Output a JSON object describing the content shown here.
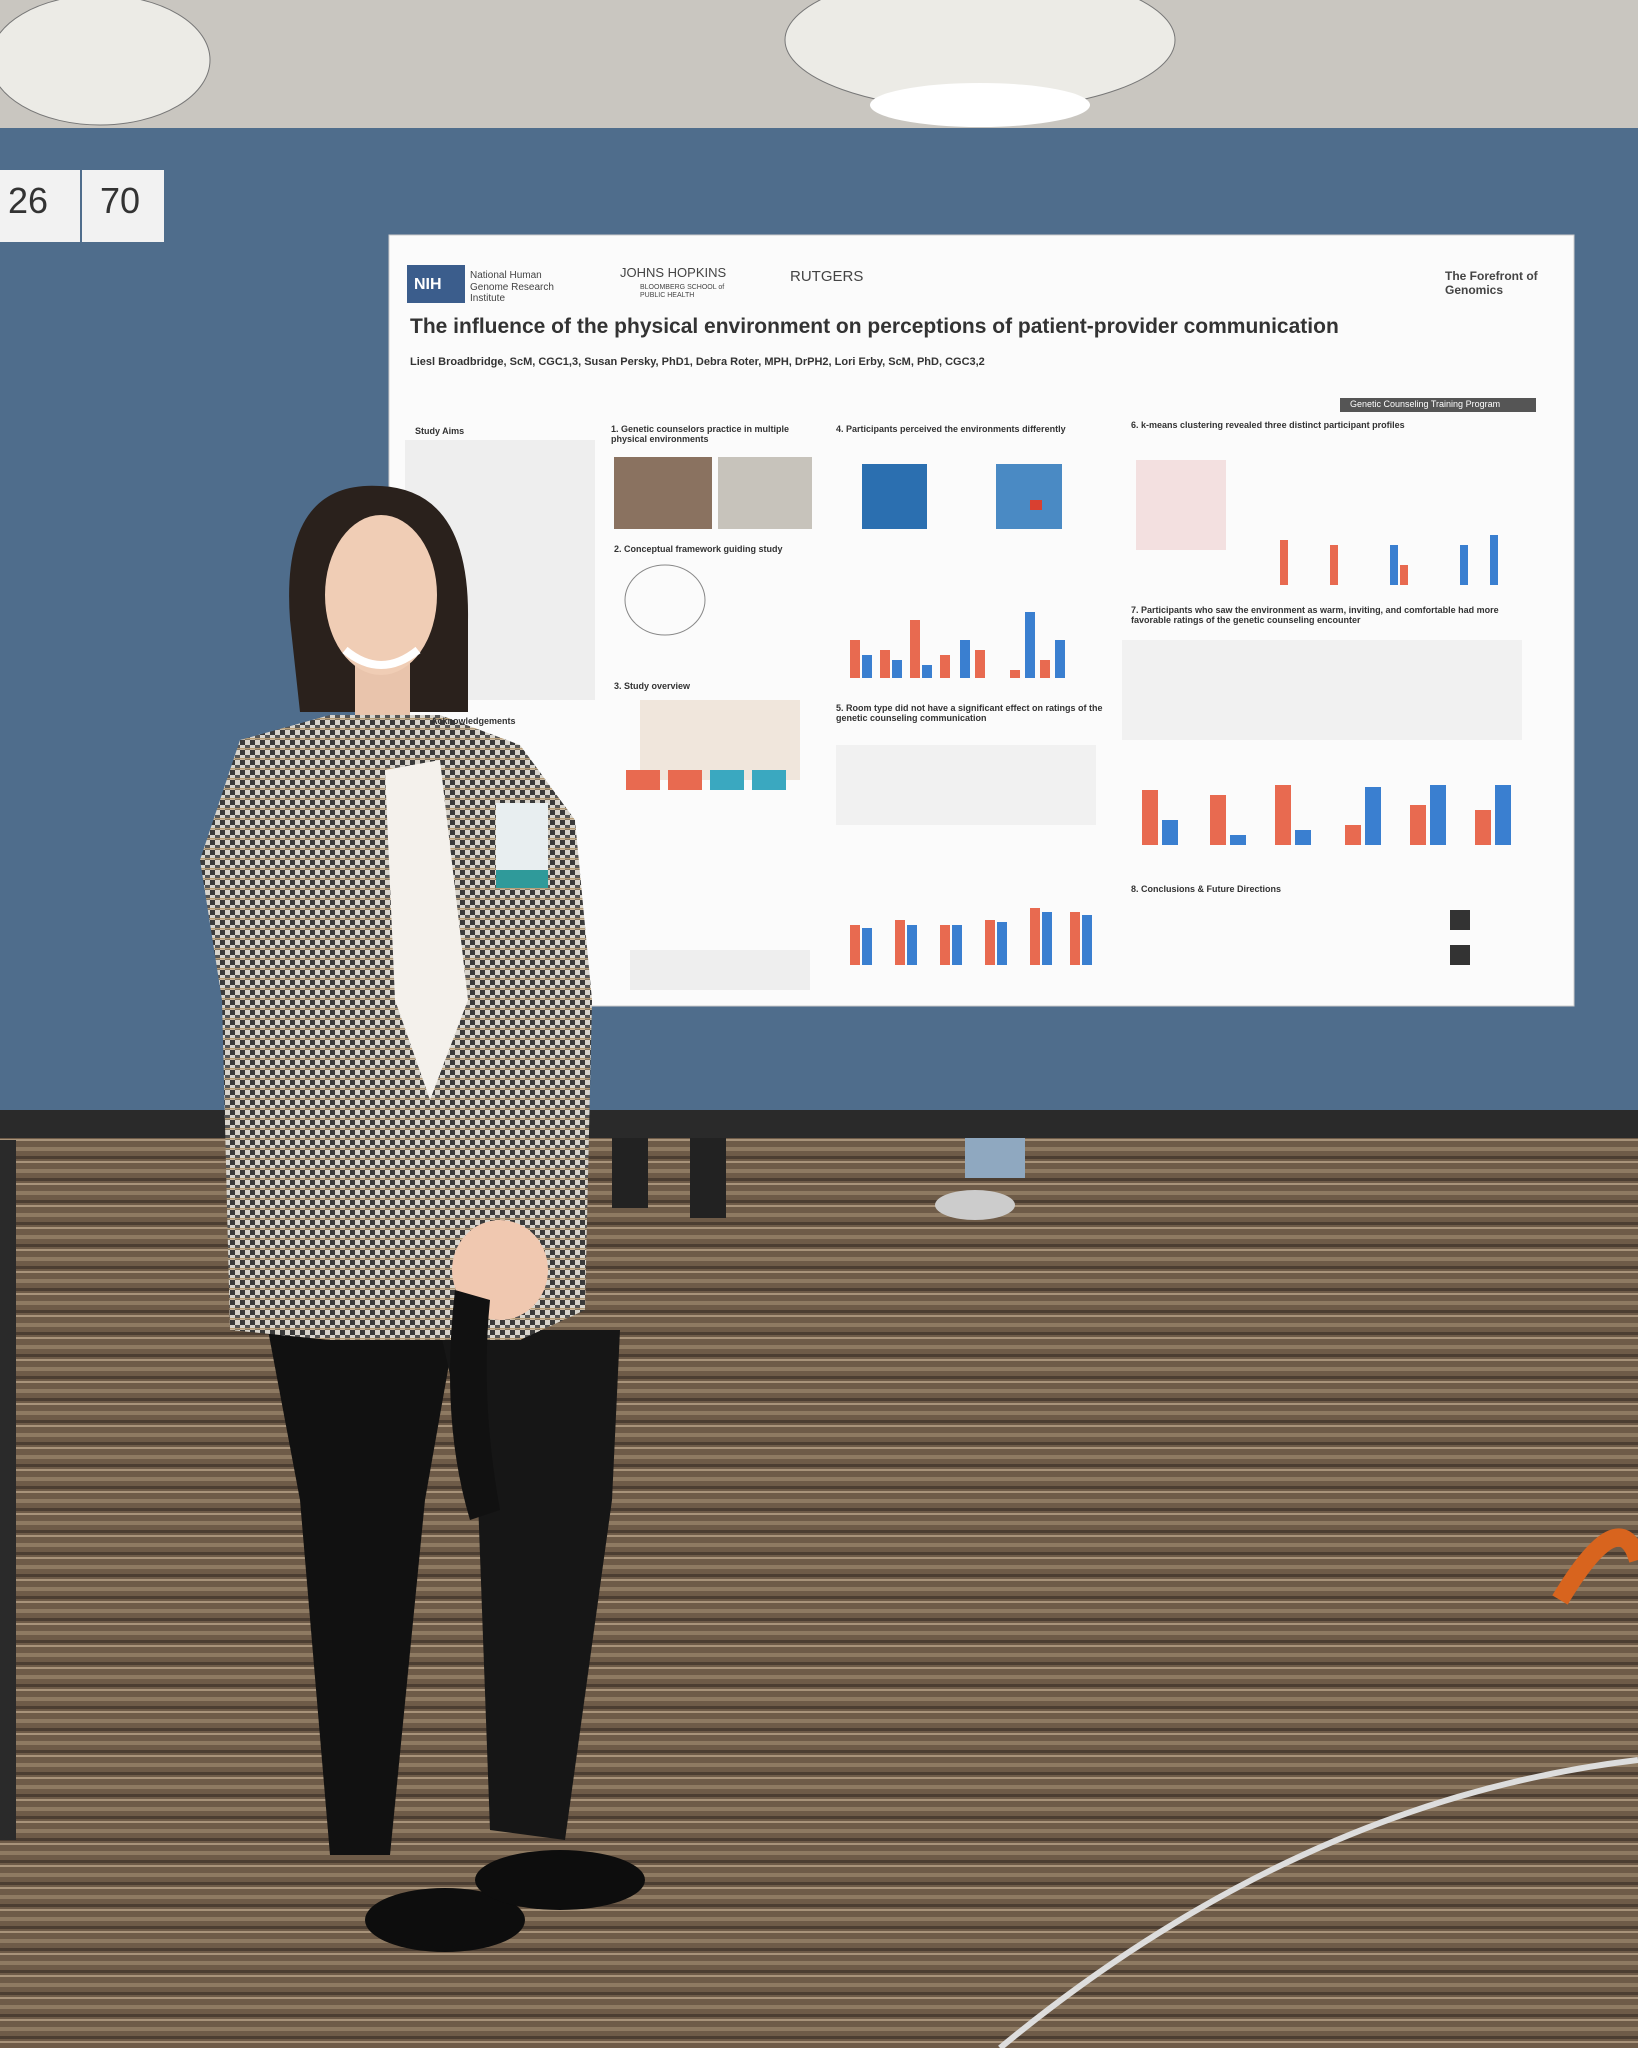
{
  "cards": [
    "26",
    "70"
  ],
  "poster": {
    "logos": {
      "nih": "NIH",
      "nhgri": "National Human Genome Research Institute",
      "jhu": "JOHNS HOPKINS",
      "jhu_sub": "BLOOMBERG SCHOOL of PUBLIC HEALTH",
      "rutgers": "RUTGERS",
      "forefront": "The Forefront of Genomics"
    },
    "title": "The influence of the physical environment on perceptions of patient-provider communication",
    "authors": "Liesl Broadbridge, ScM, CGC1,3, Susan Persky, PhD1, Debra Roter, MPH, DrPH2, Lori Erby, ScM, PhD, CGC3,2",
    "program": "Genetic Counseling Training Program",
    "sections": [
      "Study Aims",
      "Acknowledgements",
      "1. Genetic counselors practice in multiple physical environments",
      "2. Conceptual framework guiding study",
      "3. Study overview",
      "4. Participants perceived the environments differently",
      "5. Room type did not have a significant effect on ratings of the genetic counseling communication",
      "6. k-means clustering revealed three distinct participant profiles",
      "7. Participants who saw the environment as warm, inviting, and comfortable had more favorable ratings of the genetic counseling encounter",
      "8. Conclusions & Future Directions"
    ]
  }
}
